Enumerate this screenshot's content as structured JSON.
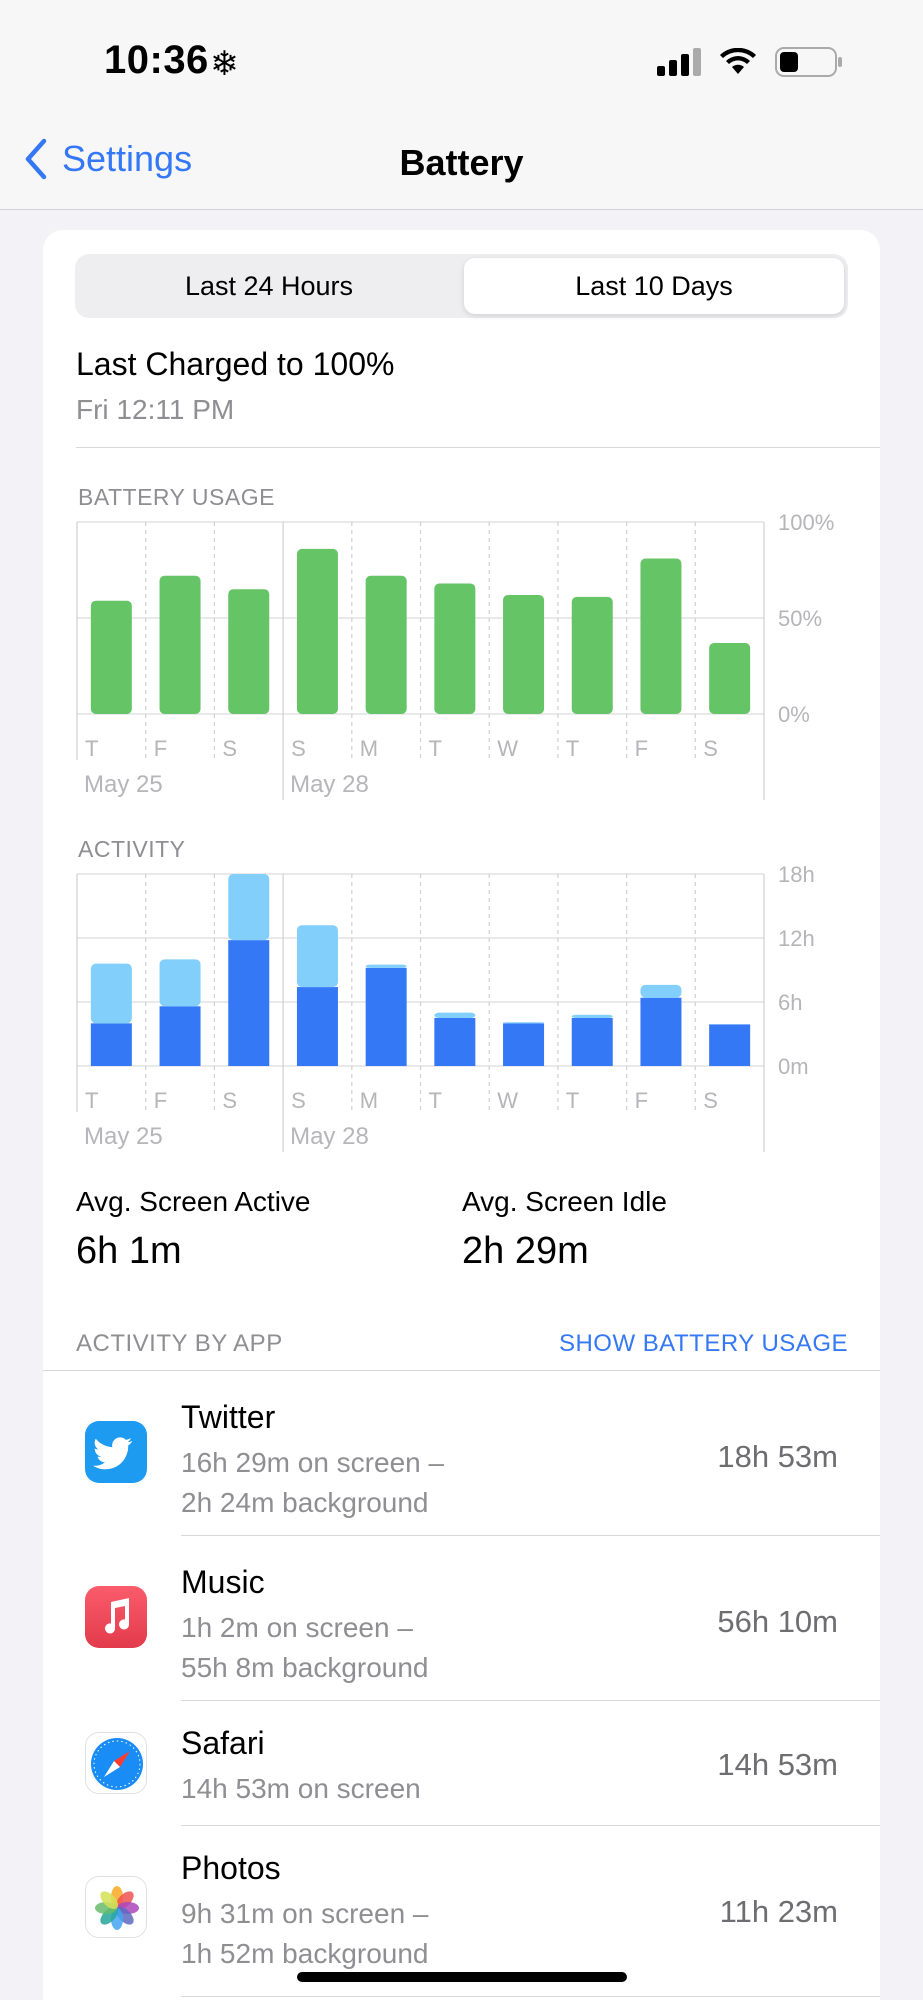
{
  "status_bar": {
    "time": "10:36",
    "status_icon": "snowflake-icon"
  },
  "nav": {
    "back_label": "Settings",
    "title": "Battery"
  },
  "segments": {
    "left_label": "Last 24 Hours",
    "right_label": "Last 10 Days",
    "selected": "Last 10 Days"
  },
  "last_charged": {
    "title": "Last Charged to 100%",
    "time": "Fri 12:11 PM"
  },
  "battery_usage": {
    "label": "BATTERY USAGE"
  },
  "activity": {
    "label": "ACTIVITY"
  },
  "averages": {
    "active_label": "Avg. Screen Active",
    "active_value": "6h 1m",
    "idle_label": "Avg. Screen Idle",
    "idle_value": "2h 29m"
  },
  "activity_by_app": {
    "label": "ACTIVITY BY APP",
    "link": "SHOW BATTERY USAGE"
  },
  "apps": [
    {
      "name": "Twitter",
      "detail_1": "16h 29m on screen –",
      "detail_2": "2h 24m background",
      "total": "18h 53m",
      "icon": "twitter-icon"
    },
    {
      "name": "Music",
      "detail_1": "1h 2m on screen –",
      "detail_2": "55h 8m background",
      "total": "56h 10m",
      "icon": "music-icon"
    },
    {
      "name": "Safari",
      "detail_1": "14h 53m on screen",
      "detail_2": "",
      "total": "14h 53m",
      "icon": "safari-icon"
    },
    {
      "name": "Photos",
      "detail_1": "9h 31m on screen –",
      "detail_2": "1h 52m background",
      "total": "11h 23m",
      "icon": "photos-icon"
    }
  ],
  "colors": {
    "accent": "#3478f6",
    "battery_green": "#65c466",
    "screen_active": "#3478f6",
    "screen_idle": "#81cffa"
  },
  "chart_data": [
    {
      "type": "bar",
      "title": "BATTERY USAGE",
      "categories": [
        "T",
        "F",
        "S",
        "S",
        "M",
        "T",
        "W",
        "T",
        "F",
        "S"
      ],
      "date_labels": [
        "May 25",
        "May 28"
      ],
      "series": [
        {
          "values": [
            59,
            72,
            65,
            86,
            72,
            68,
            62,
            61,
            81,
            37
          ]
        }
      ],
      "y_ticks": [
        "100%",
        "50%",
        "0%"
      ],
      "ylim": [
        0,
        100
      ],
      "grid": true
    },
    {
      "type": "bar",
      "title": "ACTIVITY",
      "stacked": true,
      "categories": [
        "T",
        "F",
        "S",
        "S",
        "M",
        "T",
        "W",
        "T",
        "F",
        "S"
      ],
      "date_labels": [
        "May 25",
        "May 28"
      ],
      "series": [
        {
          "values": [
            4.0,
            5.6,
            11.8,
            7.4,
            9.2,
            4.5,
            4.0,
            4.5,
            6.4,
            3.9
          ]
        },
        {
          "values": [
            5.6,
            4.4,
            6.2,
            5.8,
            0.3,
            0.5,
            0.1,
            0.3,
            1.2,
            0.0
          ]
        }
      ],
      "y_ticks": [
        "18h",
        "12h",
        "6h",
        "0m"
      ],
      "ylim": [
        0,
        18
      ],
      "grid": true
    }
  ]
}
